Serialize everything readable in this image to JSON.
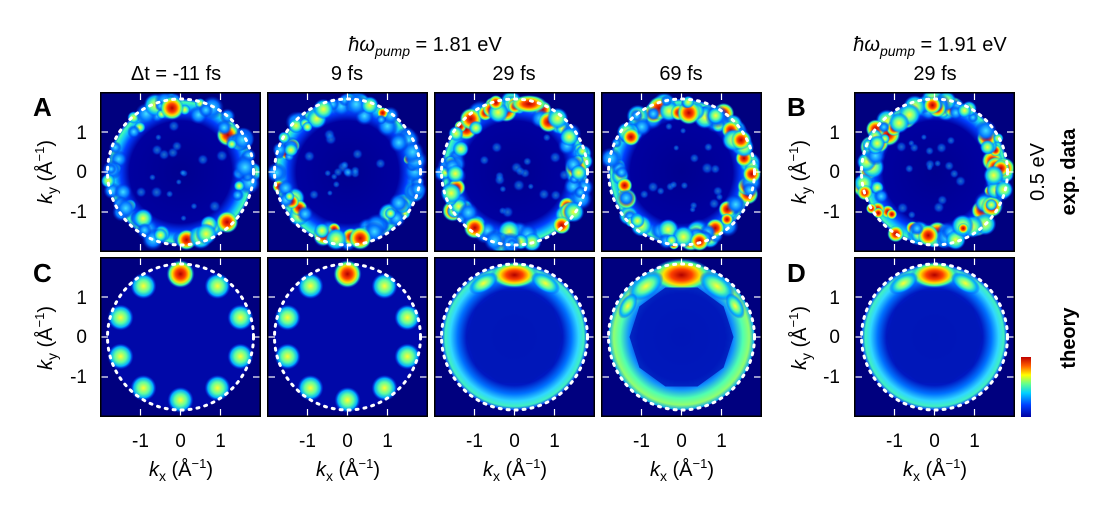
{
  "header": {
    "pump1": {
      "prefix": "ħω",
      "sub": "pump",
      "value": " = 1.81 eV"
    },
    "pump2": {
      "prefix": "ħω",
      "sub": "pump",
      "value": " = 1.91 eV"
    }
  },
  "columns": [
    {
      "delay_label": "Δt",
      "delay_value": " = -11 fs"
    },
    {
      "delay_value": "9 fs"
    },
    {
      "delay_value": "29 fs"
    },
    {
      "delay_value": "69 fs"
    },
    {
      "delay_value": "29 fs"
    }
  ],
  "panels": {
    "A": "A",
    "B": "B",
    "C": "C",
    "D": "D"
  },
  "axes": {
    "ylabel_main": "k",
    "ylabel_sub": "y",
    "ylabel_unit": " (Å",
    "ylabel_exp": "−1",
    "ylabel_close": ")",
    "xlabel_main": "k",
    "xlabel_sub": "x",
    "xlabel_unit": " (Å",
    "xlabel_exp": "−1",
    "xlabel_close": ")",
    "ticks": [
      "1",
      "0",
      "-1"
    ],
    "xticks": [
      "-1",
      "0",
      "1"
    ]
  },
  "side": {
    "energy": "0.5 eV",
    "exp": "exp. data",
    "theory": "theory"
  },
  "colors": {
    "bg": "#00007f",
    "ring": "#ffffff",
    "frame": "#000000"
  }
}
